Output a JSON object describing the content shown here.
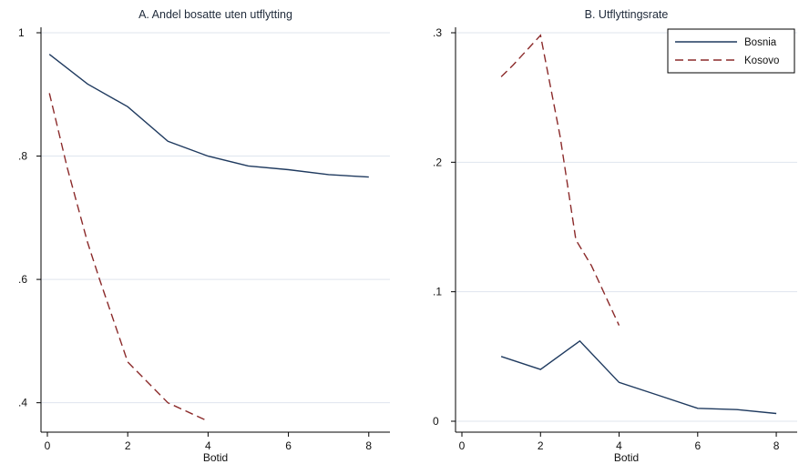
{
  "chart_data": [
    {
      "type": "line",
      "title": "A. Andel bosatte uten utflytting",
      "xlabel": "Botid",
      "ylabel": "",
      "xlim": [
        0,
        8.3
      ],
      "ylim": [
        0.37,
        1.0
      ],
      "xticks": [
        "0",
        "2",
        "4",
        "6",
        "8"
      ],
      "xtick_values": [
        0,
        2,
        4,
        6,
        8
      ],
      "yticks": [
        ".4",
        ".6",
        ".8",
        "1"
      ],
      "ytick_values": [
        0.4,
        0.6,
        0.8,
        1.0
      ],
      "grid": true,
      "series": [
        {
          "name": "Bosnia",
          "color": "#1f3a5f",
          "dash": "solid",
          "x": [
            0.05,
            1,
            2,
            3,
            4,
            5,
            6,
            7,
            8
          ],
          "y": [
            0.965,
            0.917,
            0.88,
            0.824,
            0.8,
            0.784,
            0.778,
            0.77,
            0.766
          ]
        },
        {
          "name": "Kosovo",
          "color": "#8b2a2a",
          "dash": "dashed",
          "x": [
            0.05,
            0.5,
            1,
            1.3,
            2,
            3,
            4
          ],
          "y": [
            0.902,
            0.78,
            0.66,
            0.6,
            0.466,
            0.4,
            0.37
          ]
        }
      ]
    },
    {
      "type": "line",
      "title": "B. Utflyttingsrate",
      "xlabel": "Botid",
      "ylabel": "",
      "xlim": [
        0,
        8.3
      ],
      "ylim": [
        0,
        0.3
      ],
      "xticks": [
        "0",
        "2",
        "4",
        "6",
        "8"
      ],
      "xtick_values": [
        0,
        2,
        4,
        6,
        8
      ],
      "yticks": [
        "0",
        ".1",
        ".2",
        ".3"
      ],
      "ytick_values": [
        0,
        0.1,
        0.2,
        0.3
      ],
      "grid": true,
      "legend": {
        "position": "top-right",
        "entries": [
          "Bosnia",
          "Kosovo"
        ]
      },
      "series": [
        {
          "name": "Bosnia",
          "color": "#1f3a5f",
          "dash": "solid",
          "x": [
            1,
            2,
            3,
            4,
            5,
            6,
            7,
            8
          ],
          "y": [
            0.05,
            0.04,
            0.062,
            0.03,
            0.02,
            0.01,
            0.009,
            0.006
          ]
        },
        {
          "name": "Kosovo",
          "color": "#8b2a2a",
          "dash": "dashed",
          "x": [
            1,
            1.3,
            2,
            2.5,
            2.9,
            3.3,
            4
          ],
          "y": [
            0.266,
            0.275,
            0.298,
            0.22,
            0.14,
            0.12,
            0.074
          ]
        }
      ]
    }
  ]
}
